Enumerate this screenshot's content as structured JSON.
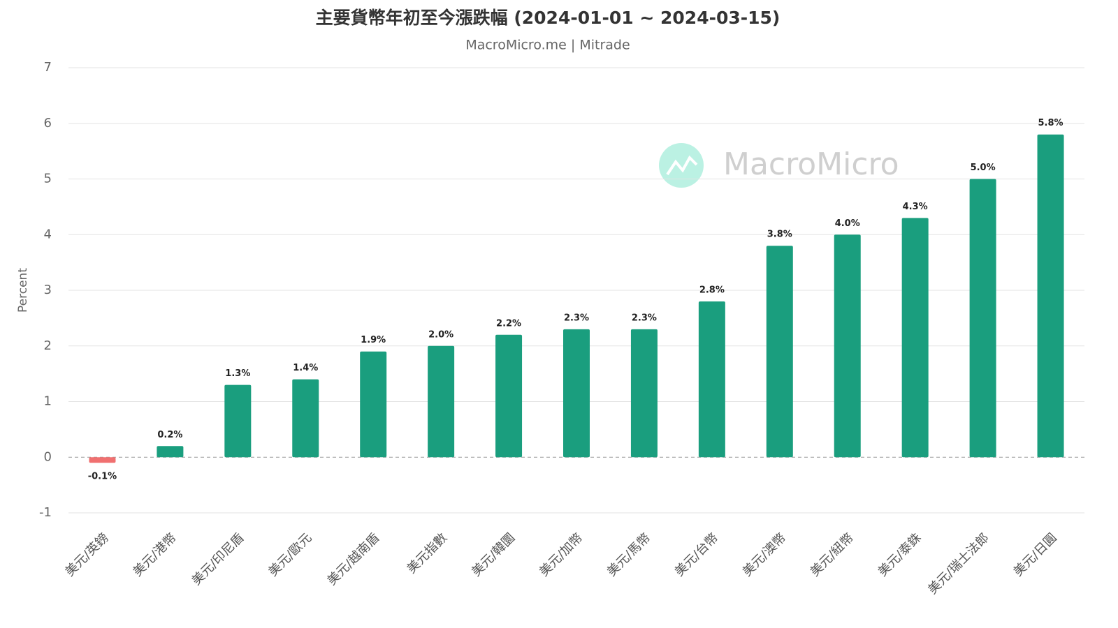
{
  "chart_data": {
    "type": "bar",
    "title": "主要貨幣年初至今漲跌幅 (2024-01-01 ~ 2024-03-15)",
    "subtitle": "MacroMicro.me | Mitrade",
    "watermark": "MacroMicro",
    "y_label": "Percent",
    "categories": [
      "美元/英鎊",
      "美元/港幣",
      "美元/印尼盾",
      "美元/歐元",
      "美元/越南盾",
      "美元指數",
      "美元/韓圜",
      "美元/加幣",
      "美元/馬幣",
      "美元/台幣",
      "美元/澳幣",
      "美元/紐幣",
      "美元/泰銖",
      "美元/瑞士法郎",
      "美元/日圓"
    ],
    "values": [
      -0.1,
      0.2,
      1.3,
      1.4,
      1.9,
      2.0,
      2.2,
      2.3,
      2.3,
      2.8,
      3.8,
      4.0,
      4.3,
      5.0,
      5.8
    ],
    "value_labels": [
      "-0.1%",
      "0.2%",
      "1.3%",
      "1.4%",
      "1.9%",
      "2.0%",
      "2.2%",
      "2.3%",
      "2.3%",
      "2.8%",
      "3.8%",
      "4.0%",
      "4.3%",
      "5.0%",
      "5.8%"
    ],
    "color": "#1a9e7e",
    "negative_color": "#f07070",
    "ylim": [
      -1,
      7
    ],
    "yticks": [
      -1,
      0,
      1,
      2,
      3,
      4,
      5,
      6,
      7
    ],
    "grid": true
  }
}
